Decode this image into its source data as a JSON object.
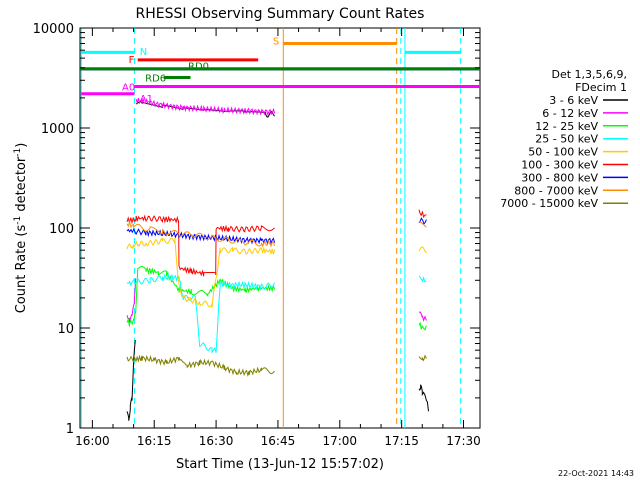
{
  "chart_data": {
    "type": "line",
    "title": "RHESSI Observing Summary Count Rates",
    "xlabel": "Start Time (13-Jun-12 15:57:02)",
    "ylabel_main": "Count Rate (s",
    "ylabel_exp1": "-1",
    "ylabel_mid": " detector",
    "ylabel_exp2": "-1",
    "ylabel_end": ")",
    "x_units": "minutes after 15:57:02",
    "xlim": [
      0,
      97
    ],
    "ylim": [
      1,
      10000
    ],
    "yscale": "log",
    "x_ticks": [
      {
        "value": 3,
        "label": "16:00"
      },
      {
        "value": 18,
        "label": "16:15"
      },
      {
        "value": 33,
        "label": "16:30"
      },
      {
        "value": 48,
        "label": "16:45"
      },
      {
        "value": 63,
        "label": "17:00"
      },
      {
        "value": 78,
        "label": "17:15"
      },
      {
        "value": 93,
        "label": "17:30"
      }
    ],
    "y_ticks": [
      {
        "value": 1,
        "label": "1"
      },
      {
        "value": 10,
        "label": "10"
      },
      {
        "value": 100,
        "label": "100"
      },
      {
        "value": 1000,
        "label": "1000"
      },
      {
        "value": 10000,
        "label": "10000"
      }
    ],
    "legend_header": "Det 1,3,5,6,9,",
    "legend_header2": "FDecim 1",
    "legend_position": "right",
    "series": [
      {
        "name": "3 - 6 keV",
        "color": "#000000",
        "segments": [
          {
            "x": [
              11.4,
              11.8,
              12.2,
              12.6,
              13,
              13.4
            ],
            "y": [
              1.5,
              1.2,
              1.6,
              2.0,
              4.5,
              8
            ]
          },
          {
            "x": [
              13.6,
              15,
              20,
              25,
              30,
              35,
              40,
              45,
              47.2
            ],
            "y": [
              1850,
              1700,
              1600,
              1500,
              1450,
              1400,
              1400,
              1350,
              1400
            ]
          },
          {
            "x": [
              82.2,
              82.6,
              83,
              84,
              84.5
            ],
            "y": [
              2.5,
              2.6,
              2.3,
              2.0,
              1.5
            ]
          }
        ]
      },
      {
        "name": "6 - 12 keV",
        "color": "#ff00ff",
        "segments": [
          {
            "x": [
              11.4,
              12,
              12.6,
              13.2,
              13.5
            ],
            "y": [
              14,
              12,
              13,
              18,
              30
            ]
          },
          {
            "x": [
              13.6,
              15,
              20,
              25,
              30,
              35,
              40,
              45,
              47.2
            ],
            "y": [
              1900,
              1850,
              1700,
              1600,
              1550,
              1500,
              1500,
              1450,
              1450
            ]
          },
          {
            "x": [
              82.2,
              83,
              84
            ],
            "y": [
              14,
              13,
              12
            ]
          }
        ]
      },
      {
        "name": "12 - 25 keV",
        "color": "#00ff00",
        "segments": [
          {
            "x": [
              11.4,
              12,
              13,
              13.5,
              14,
              16,
              19,
              21,
              24,
              27,
              31,
              34,
              37,
              40,
              43,
              47.2
            ],
            "y": [
              12,
              11,
              12,
              14,
              40,
              38,
              36,
              35,
              24,
              23,
              22,
              30,
              25,
              24,
              25,
              25
            ]
          },
          {
            "x": [
              82.2,
              83,
              84
            ],
            "y": [
              11,
              10,
              10
            ]
          }
        ]
      },
      {
        "name": "25 - 50 keV",
        "color": "#00ffff",
        "segments": [
          {
            "x": [
              11.4,
              12,
              13,
              14,
              17,
              20,
              24,
              25,
              28,
              29,
              32,
              33,
              34,
              36,
              40,
              44,
              47.2
            ],
            "y": [
              30,
              28,
              29,
              29,
              30,
              32,
              32,
              20,
              20,
              7,
              6,
              6,
              28,
              27,
              27,
              26,
              27
            ]
          },
          {
            "x": [
              82.2,
              83,
              84
            ],
            "y": [
              32,
              30,
              30
            ]
          }
        ]
      },
      {
        "name": "50 - 100 keV",
        "color": "#ffcc00",
        "segments": [
          {
            "x": [
              11.4,
              13,
              14,
              16,
              20,
              23,
              24,
              25,
              29,
              32,
              34,
              37,
              40,
              44,
              47.2
            ],
            "y": [
              65,
              67,
              70,
              70,
              74,
              75,
              26,
              20,
              18,
              17,
              60,
              60,
              58,
              60,
              58
            ]
          },
          {
            "x": [
              82.2,
              84
            ],
            "y": [
              62,
              60
            ]
          }
        ]
      },
      {
        "name": "100 - 300 keV",
        "color": "#ff0000",
        "segments": [
          {
            "x": [
              11.4,
              13.5,
              13.6,
              16,
              20,
              23.9,
              24,
              27,
              30,
              32.9,
              33,
              36,
              40,
              44,
              47.2
            ],
            "y": [
              120,
              120,
              125,
              125,
              123,
              120,
              40,
              37,
              35,
              34,
              100,
              98,
              97,
              100,
              100
            ]
          },
          {
            "x": [
              82.2,
              83,
              84
            ],
            "y": [
              145,
              140,
              130
            ]
          }
        ]
      },
      {
        "name": "300 - 800 keV",
        "color": "#0000ff",
        "segments": [
          {
            "x": [
              11.4,
              13,
              16,
              20,
              24,
              28,
              32,
              36,
              40,
              44,
              47.2
            ],
            "y": [
              95,
              93,
              90,
              88,
              85,
              82,
              80,
              78,
              76,
              75,
              75
            ]
          },
          {
            "x": [
              82.2,
              84
            ],
            "y": [
              120,
              115
            ]
          }
        ]
      },
      {
        "name": "800 - 7000 keV",
        "color": "#ff8c00",
        "segments": [
          {
            "x": [
              11.4,
              13,
              17,
              20,
              24,
              28,
              32,
              36,
              40,
              44,
              47.2
            ],
            "y": [
              110,
              105,
              97,
              93,
              88,
              85,
              80,
              76,
              72,
              70,
              70
            ]
          },
          {
            "x": [
              82.2,
              84
            ],
            "y": [
              110,
              105
            ]
          }
        ]
      },
      {
        "name": "7000 - 15000 keV",
        "color": "#808000",
        "segments": [
          {
            "x": [
              11.4,
              13,
              15,
              18,
              21,
              24,
              26,
              29,
              32,
              35,
              38,
              41,
              44,
              47.2
            ],
            "y": [
              5,
              4.8,
              5,
              4.8,
              4.5,
              5,
              4.2,
              4.5,
              4.5,
              4,
              3.6,
              3.6,
              3.8,
              3.7
            ]
          },
          {
            "x": [
              82.2,
              83,
              84
            ],
            "y": [
              5.5,
              5,
              5
            ]
          }
        ]
      }
    ],
    "vertical_lines": [
      {
        "x": 0.3,
        "color": "#00ffff",
        "style": "solid"
      },
      {
        "x": 13.2,
        "color": "#00ffff",
        "style": "dashed"
      },
      {
        "x": 49.3,
        "color": "#ff8c00",
        "style": "solid"
      },
      {
        "x": 76.8,
        "color": "#ff8c00",
        "style": "dashed"
      },
      {
        "x": 77.8,
        "color": "#00ffff",
        "style": "dashed"
      },
      {
        "x": 78.8,
        "color": "#00ffff",
        "style": "solid"
      },
      {
        "x": 92.3,
        "color": "#00ffff",
        "style": "dashed"
      }
    ],
    "flag_bars": [
      {
        "label": "N",
        "color": "#00ffff",
        "label_color": "#00ffff",
        "y": 5700,
        "segments": [
          [
            0.3,
            13.2
          ],
          [
            78.8,
            92.3
          ]
        ],
        "label_x": 14.5,
        "label_anchor": "start",
        "label_y": 5900
      },
      {
        "label": "S",
        "color": "#ff8c00",
        "label_color": "#ff8c00",
        "y": 7000,
        "segments": [
          [
            49.3,
            76.8
          ]
        ],
        "label_x": 48.3,
        "label_anchor": "end",
        "label_y": 7500
      },
      {
        "label": "F",
        "color": "#ff0000",
        "label_color": "#ff0000",
        "y": 4800,
        "segments": [
          [
            14,
            43.2
          ]
        ],
        "label_x": 13.2,
        "label_anchor": "end",
        "label_y": 4900
      },
      {
        "label": "RD0",
        "color": "#0000ff",
        "label_color": "#008000",
        "y": 3900,
        "segments": [
          [
            0,
            97
          ]
        ],
        "label_x": 26.2,
        "label_anchor": "start",
        "label_y": 4200
      },
      {
        "label": "RD6",
        "color": "#008000",
        "label_color": "#008000",
        "y": 3900,
        "segments": [
          [
            0,
            97
          ]
        ],
        "label_x": 0,
        "label_anchor": "start",
        "label_y": 0
      },
      {
        "label": "RD6",
        "color": "#008000",
        "label_color": "#008000",
        "y": 3200,
        "segments": [
          [
            20.3,
            26.8
          ]
        ],
        "label_x": 15.8,
        "label_anchor": "start",
        "label_y": 3200
      },
      {
        "label": "A0",
        "color": "#ff00ff",
        "label_color": "#ff00ff",
        "y": 2200,
        "segments": [
          [
            0.3,
            13.2
          ]
        ],
        "label_x": 10.2,
        "label_anchor": "start",
        "label_y": 2600
      },
      {
        "label": "A1",
        "color": "#ff00ff",
        "label_color": "#ff00ff",
        "y": 2600,
        "segments": [
          [
            13.2,
            97
          ]
        ],
        "label_x": 14.5,
        "label_anchor": "start",
        "label_y": 2000
      }
    ],
    "footer_date": "22-Oct-2021 14:43"
  }
}
